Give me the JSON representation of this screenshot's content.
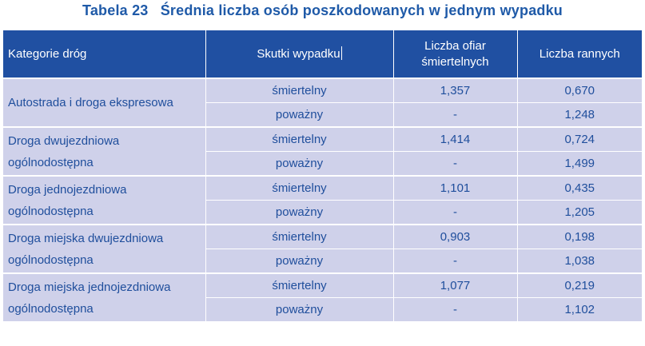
{
  "title": {
    "number": "Tabela 23",
    "text": "Średnia liczba osób poszkodowanych w jednym wypadku"
  },
  "headers": {
    "category": "Kategorie dróg",
    "effect": "Skutki wypadku",
    "deaths_line1": "Liczba ofiar",
    "deaths_line2": "śmiertelnych",
    "injured": "Liczba rannych"
  },
  "rows": [
    {
      "category_line1": "Autostrada i droga ekspresowa",
      "category_line2": "",
      "fatal": {
        "effect": "śmiertelny",
        "deaths": "1,357",
        "injured": "0,670"
      },
      "serious": {
        "effect": "poważny",
        "deaths": "-",
        "injured": "1,248"
      }
    },
    {
      "category_line1": "Droga dwujezdniowa",
      "category_line2": "ogólnodostępna",
      "fatal": {
        "effect": "śmiertelny",
        "deaths": "1,414",
        "injured": "0,724"
      },
      "serious": {
        "effect": "poważny",
        "deaths": "-",
        "injured": "1,499"
      }
    },
    {
      "category_line1": "Droga jednojezdniowa",
      "category_line2": "ogólnodostępna",
      "fatal": {
        "effect": "śmiertelny",
        "deaths": "1,101",
        "injured": "0,435"
      },
      "serious": {
        "effect": "poważny",
        "deaths": "-",
        "injured": "1,205"
      }
    },
    {
      "category_line1": "Droga miejska dwujezdniowa",
      "category_line2": "ogólnodostępna",
      "fatal": {
        "effect": "śmiertelny",
        "deaths": "0,903",
        "injured": "0,198"
      },
      "serious": {
        "effect": "poważny",
        "deaths": "-",
        "injured": "1,038"
      }
    },
    {
      "category_line1": "Droga miejska jednojezdniowa",
      "category_line2": "ogólnodostępna",
      "fatal": {
        "effect": "śmiertelny",
        "deaths": "1,077",
        "injured": "0,219"
      },
      "serious": {
        "effect": "poważny",
        "deaths": "-",
        "injured": "1,102"
      }
    }
  ],
  "colors": {
    "title": "#1f5aa8",
    "header_bg": "#2050a2",
    "row_bg": "#cfd1ea",
    "text": "#1f4e9c"
  }
}
